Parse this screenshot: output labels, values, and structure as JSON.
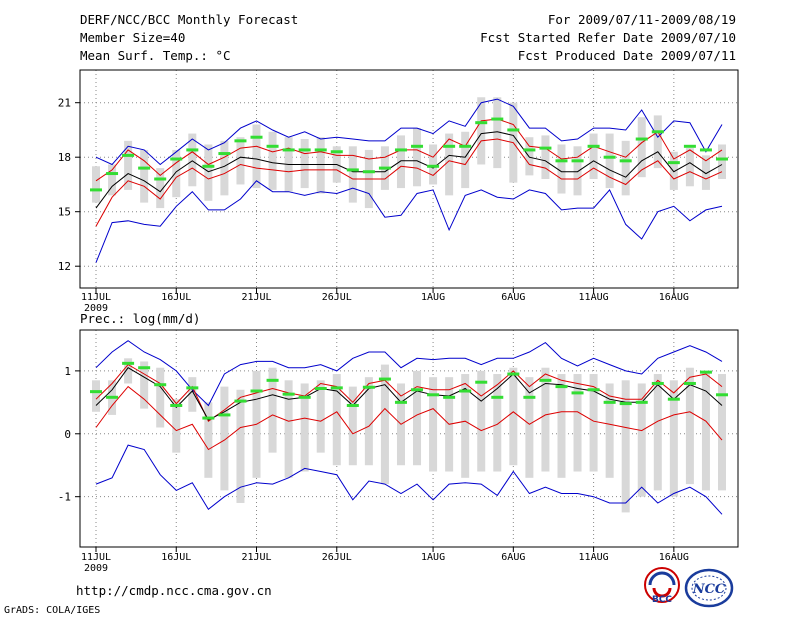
{
  "header": {
    "title": "DERF/NCC/BCC Monthly Forecast",
    "member_size": "Member Size=40",
    "variable": "Mean Surf. Temp.: °C",
    "period": "For 2009/07/11-2009/08/19",
    "fcst_started": "Fcst Started Refer Date 2009/07/10",
    "fcst_produced": "Fcst Produced Date 2009/07/11"
  },
  "footer": {
    "url": "http://cmdp.ncc.cma.gov.cn",
    "grads": "GrADS: COLA/IGES",
    "logo_bcc": "BCC",
    "logo_ncc": "NCC"
  },
  "colors": {
    "ensemble_mean": "#000000",
    "spread": "#dd0000",
    "extreme": "#0000cc",
    "box": "#d8d8d8",
    "median": "#33dd33"
  },
  "chart_data": [
    {
      "type": "line",
      "title": "Mean Surf. Temp.: °C",
      "xlabel": "",
      "ylabel": "°C",
      "ylim": [
        10.8,
        22.8
      ],
      "yticks": [
        12,
        15,
        18,
        21
      ],
      "xticks": [
        "11JUL",
        "16JUL",
        "21JUL",
        "26JUL",
        "1AUG",
        "6AUG",
        "11AUG",
        "16AUG"
      ],
      "x_year_label": "2009",
      "days": 40,
      "series": [
        {
          "name": "upper-extreme",
          "color": "#0000cc",
          "values": [
            18.0,
            17.6,
            18.6,
            18.4,
            17.6,
            18.3,
            19.0,
            18.4,
            18.8,
            19.6,
            20.0,
            19.5,
            19.1,
            19.4,
            19.0,
            19.1,
            19.0,
            18.9,
            18.9,
            19.6,
            19.6,
            19.3,
            20.0,
            19.7,
            21.0,
            21.2,
            20.8,
            19.6,
            19.6,
            18.9,
            19.0,
            19.6,
            19.6,
            19.5,
            20.6,
            19.1,
            20.0,
            19.9,
            18.3,
            19.8
          ]
        },
        {
          "name": "upper-spread",
          "color": "#dd0000",
          "values": [
            16.7,
            17.3,
            18.4,
            17.8,
            17.0,
            17.7,
            18.3,
            17.6,
            18.0,
            18.5,
            18.6,
            18.3,
            18.5,
            18.2,
            18.3,
            18.1,
            18.1,
            17.9,
            18.0,
            18.4,
            18.4,
            18.0,
            19.0,
            18.6,
            20.0,
            20.1,
            19.8,
            18.6,
            18.5,
            17.9,
            18.0,
            18.6,
            18.3,
            18.0,
            18.8,
            19.4,
            17.9,
            18.4,
            17.8,
            18.4
          ]
        },
        {
          "name": "ensemble-mean",
          "color": "#000000",
          "values": [
            15.2,
            16.4,
            17.1,
            16.7,
            16.1,
            17.2,
            17.8,
            17.2,
            17.5,
            18.0,
            17.9,
            17.7,
            17.6,
            17.6,
            17.6,
            17.6,
            17.2,
            17.2,
            17.2,
            17.8,
            17.8,
            17.4,
            18.1,
            18.0,
            19.3,
            19.4,
            19.2,
            18.0,
            17.8,
            17.2,
            17.2,
            17.8,
            17.3,
            16.9,
            17.8,
            18.3,
            17.2,
            17.7,
            17.1,
            17.6
          ]
        },
        {
          "name": "lower-spread",
          "color": "#dd0000",
          "values": [
            14.2,
            15.8,
            16.7,
            16.4,
            15.7,
            16.9,
            17.4,
            16.8,
            17.1,
            17.6,
            17.4,
            17.3,
            17.2,
            17.3,
            17.3,
            17.3,
            16.8,
            16.8,
            16.8,
            17.5,
            17.4,
            17.0,
            17.8,
            17.6,
            18.9,
            19.0,
            18.8,
            17.6,
            17.4,
            16.8,
            16.8,
            17.4,
            16.9,
            16.5,
            17.3,
            17.8,
            16.8,
            17.2,
            16.8,
            17.2
          ]
        },
        {
          "name": "lower-extreme",
          "color": "#0000cc",
          "values": [
            12.2,
            14.4,
            14.5,
            14.3,
            14.2,
            15.3,
            16.1,
            15.1,
            15.1,
            15.7,
            16.7,
            16.1,
            16.1,
            15.9,
            16.1,
            16.0,
            16.3,
            16.0,
            14.7,
            14.8,
            16.0,
            16.2,
            14.0,
            15.9,
            16.2,
            15.8,
            15.7,
            16.2,
            16.0,
            15.1,
            15.2,
            15.2,
            16.2,
            14.3,
            13.5,
            15.0,
            15.3,
            14.5,
            15.1,
            15.3
          ]
        }
      ],
      "boxes": {
        "low": [
          15.5,
          15.9,
          16.2,
          15.5,
          15.2,
          15.8,
          16.4,
          15.6,
          15.9,
          16.5,
          16.3,
          16.2,
          16.1,
          16.3,
          16.0,
          16.6,
          15.5,
          15.2,
          16.2,
          16.3,
          16.4,
          16.5,
          15.9,
          16.3,
          17.6,
          17.4,
          16.6,
          17.0,
          16.8,
          16.0,
          15.9,
          16.8,
          16.3,
          15.9,
          16.9,
          17.4,
          16.2,
          16.4,
          16.2,
          16.8
        ],
        "high": [
          17.5,
          17.6,
          18.9,
          18.4,
          17.4,
          18.4,
          19.3,
          18.7,
          18.9,
          19.1,
          19.8,
          19.4,
          19.1,
          19.0,
          19.1,
          18.6,
          18.6,
          18.4,
          18.6,
          19.2,
          19.6,
          18.7,
          19.3,
          19.4,
          21.3,
          21.3,
          21.0,
          19.1,
          19.2,
          18.7,
          18.6,
          19.3,
          19.3,
          18.9,
          20.2,
          20.3,
          18.3,
          18.5,
          18.1,
          18.7
        ],
        "median": [
          16.2,
          17.1,
          18.1,
          17.4,
          16.8,
          17.9,
          18.4,
          17.5,
          18.2,
          18.9,
          19.1,
          18.6,
          18.4,
          18.4,
          18.4,
          18.3,
          17.3,
          17.2,
          17.4,
          18.4,
          18.6,
          17.5,
          18.6,
          18.6,
          19.9,
          20.1,
          19.5,
          18.4,
          18.5,
          17.8,
          17.8,
          18.6,
          18.0,
          17.8,
          19.0,
          19.4,
          17.7,
          18.6,
          18.4,
          17.9
        ]
      }
    },
    {
      "type": "line",
      "title": "Prec.: log(mm/d)",
      "xlabel": "",
      "ylabel": "log(mm/d)",
      "ylim": [
        -1.8,
        1.65
      ],
      "yticks": [
        -1,
        0,
        1
      ],
      "xticks": [
        "11JUL",
        "16JUL",
        "21JUL",
        "26JUL",
        "1AUG",
        "6AUG",
        "11AUG",
        "16AUG"
      ],
      "x_year_label": "2009",
      "days": 40,
      "series": [
        {
          "name": "upper-extreme",
          "color": "#0000cc",
          "values": [
            1.05,
            1.3,
            1.48,
            1.3,
            1.18,
            1.0,
            0.7,
            0.45,
            0.95,
            1.1,
            1.15,
            1.15,
            1.05,
            1.05,
            1.1,
            1.0,
            1.2,
            1.3,
            1.3,
            1.05,
            1.2,
            1.18,
            1.2,
            1.2,
            1.1,
            1.2,
            1.2,
            1.3,
            1.45,
            1.2,
            1.08,
            1.2,
            1.1,
            1.0,
            0.95,
            1.2,
            1.3,
            1.4,
            1.3,
            1.15
          ]
        },
        {
          "name": "upper-spread",
          "color": "#dd0000",
          "values": [
            0.55,
            0.8,
            1.1,
            0.95,
            0.8,
            0.48,
            0.75,
            0.2,
            0.38,
            0.58,
            0.65,
            0.72,
            0.65,
            0.6,
            0.8,
            0.75,
            0.5,
            0.8,
            0.85,
            0.6,
            0.75,
            0.7,
            0.7,
            0.8,
            0.6,
            0.78,
            1.0,
            0.75,
            0.95,
            0.85,
            0.8,
            0.75,
            0.6,
            0.55,
            0.55,
            0.85,
            0.65,
            0.9,
            0.95,
            0.75
          ]
        },
        {
          "name": "ensemble-mean",
          "color": "#000000",
          "values": [
            0.45,
            0.7,
            1.05,
            0.9,
            0.75,
            0.42,
            0.68,
            0.22,
            0.35,
            0.5,
            0.55,
            0.62,
            0.55,
            0.58,
            0.72,
            0.68,
            0.45,
            0.72,
            0.78,
            0.5,
            0.68,
            0.62,
            0.6,
            0.72,
            0.52,
            0.72,
            0.95,
            0.65,
            0.8,
            0.78,
            0.72,
            0.68,
            0.55,
            0.5,
            0.5,
            0.78,
            0.55,
            0.78,
            0.68,
            0.45
          ]
        },
        {
          "name": "lower-spread",
          "color": "#dd0000",
          "values": [
            0.1,
            0.45,
            0.75,
            0.55,
            0.3,
            0.05,
            0.15,
            -0.25,
            -0.1,
            0.1,
            0.15,
            0.3,
            0.2,
            0.25,
            0.2,
            0.35,
            0.0,
            0.12,
            0.4,
            0.15,
            0.3,
            0.4,
            0.15,
            0.2,
            0.05,
            0.15,
            0.35,
            0.15,
            0.3,
            0.35,
            0.35,
            0.2,
            0.15,
            0.1,
            0.05,
            0.2,
            0.3,
            0.35,
            0.2,
            -0.1
          ]
        },
        {
          "name": "lower-extreme",
          "color": "#0000cc",
          "values": [
            -0.8,
            -0.7,
            -0.18,
            -0.25,
            -0.65,
            -0.9,
            -0.78,
            -1.2,
            -1.0,
            -0.85,
            -0.78,
            -0.8,
            -0.7,
            -0.55,
            -0.6,
            -0.65,
            -1.05,
            -0.75,
            -0.8,
            -0.95,
            -0.8,
            -1.05,
            -0.8,
            -0.78,
            -0.8,
            -0.98,
            -0.6,
            -0.95,
            -0.85,
            -0.95,
            -0.95,
            -1.0,
            -1.1,
            -1.1,
            -0.85,
            -1.1,
            -0.95,
            -0.85,
            -1.0,
            -1.28
          ]
        },
        {
          "name": "box-median",
          "color": "#33dd33",
          "style": "markers",
          "values": [
            0.67,
            0.58,
            1.12,
            1.05,
            0.78,
            0.45,
            0.73,
            0.25,
            0.3,
            0.52,
            0.68,
            0.85,
            0.63,
            0.58,
            0.72,
            0.73,
            0.45,
            0.74,
            0.87,
            0.5,
            0.7,
            0.62,
            0.58,
            0.68,
            0.82,
            0.58,
            0.95,
            0.58,
            0.85,
            0.75,
            0.65,
            0.7,
            0.5,
            0.48,
            0.5,
            0.8,
            0.55,
            0.8,
            0.98,
            0.62
          ]
        }
      ],
      "boxes": {
        "low": [
          0.35,
          0.3,
          0.8,
          0.4,
          0.1,
          -0.3,
          0.35,
          -0.7,
          -0.9,
          -1.1,
          -0.7,
          -0.3,
          -0.7,
          -0.6,
          -0.3,
          -0.5,
          -0.5,
          -0.5,
          -0.8,
          -0.5,
          -0.5,
          -0.6,
          -0.6,
          -0.7,
          -0.6,
          -0.6,
          -0.5,
          -0.7,
          -0.6,
          -0.7,
          -0.6,
          -0.6,
          -0.7,
          -1.25,
          -1.0,
          -0.9,
          -1.0,
          -0.8,
          -0.9,
          -0.9
        ],
        "high": [
          0.85,
          0.85,
          1.2,
          1.15,
          1.05,
          0.55,
          0.9,
          0.5,
          0.75,
          0.7,
          1.0,
          1.05,
          0.85,
          0.8,
          0.85,
          0.95,
          0.75,
          0.9,
          1.1,
          0.8,
          1.0,
          0.9,
          0.9,
          0.95,
          1.0,
          0.95,
          1.05,
          0.9,
          1.05,
          0.95,
          0.95,
          0.95,
          0.8,
          0.85,
          0.8,
          0.95,
          0.85,
          1.05,
          1.0,
          0.95
        ]
      },
      "median_markers": [
        0.67,
        0.58,
        1.12,
        1.05,
        0.78,
        0.45,
        0.73,
        0.25,
        0.3,
        0.52,
        0.68,
        0.85,
        0.63,
        0.58,
        0.72,
        0.73,
        0.45,
        0.74,
        0.87,
        0.5,
        0.7,
        0.62,
        0.58,
        0.68,
        0.82,
        0.58,
        0.95,
        0.58,
        0.85,
        0.75,
        0.65,
        0.7,
        0.5,
        0.48,
        0.5,
        0.8,
        0.55,
        0.8,
        0.98,
        0.62
      ]
    }
  ]
}
